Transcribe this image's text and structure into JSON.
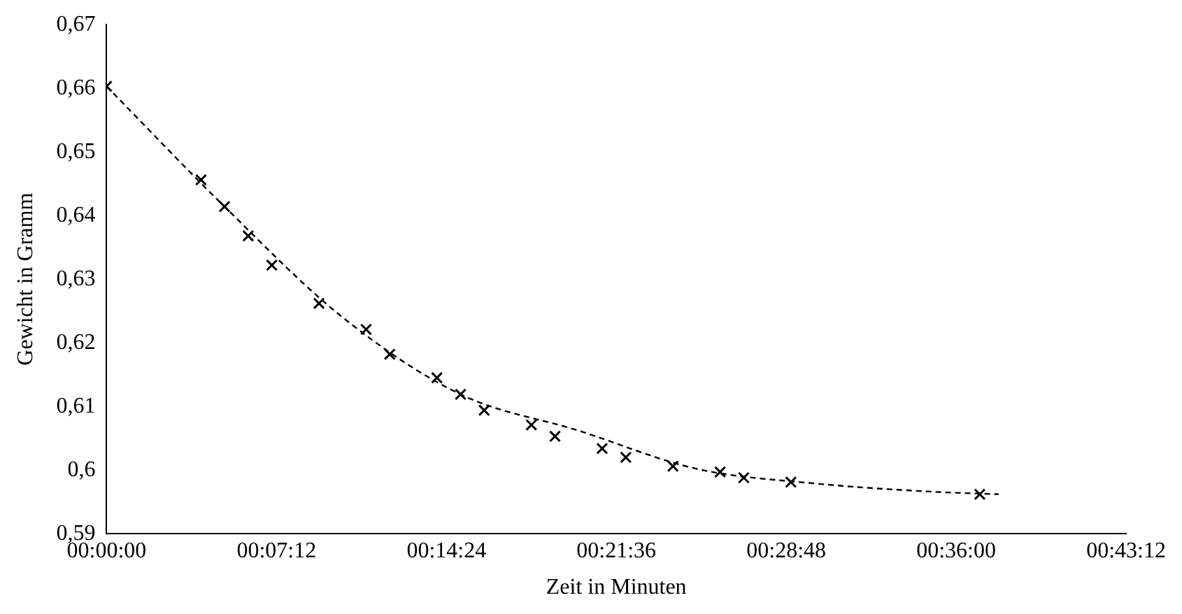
{
  "chart_data": {
    "type": "scatter",
    "xlabel": "Zeit in Minuten",
    "ylabel": "Gewicht in Gramm",
    "xlim": [
      0,
      0.72
    ],
    "xticks": [
      {
        "value": 0,
        "label": "00:00:00"
      },
      {
        "value": 0.12,
        "label": "00:07:12"
      },
      {
        "value": 0.24,
        "label": "00:14:24"
      },
      {
        "value": 0.36,
        "label": "00:21:36"
      },
      {
        "value": 0.48,
        "label": "00:28:48"
      },
      {
        "value": 0.6,
        "label": "00:36:00"
      },
      {
        "value": 0.72,
        "label": "00:43:12"
      }
    ],
    "ylim": [
      0.59,
      0.67
    ],
    "yticks": [
      {
        "value": 0.59,
        "label": "0,59"
      },
      {
        "value": 0.6,
        "label": "0,6"
      },
      {
        "value": 0.61,
        "label": "0,61"
      },
      {
        "value": 0.62,
        "label": "0,62"
      },
      {
        "value": 0.63,
        "label": "0,63"
      },
      {
        "value": 0.64,
        "label": "0,64"
      },
      {
        "value": 0.65,
        "label": "0,65"
      },
      {
        "value": 0.66,
        "label": "0,66"
      },
      {
        "value": 0.67,
        "label": "0,67"
      }
    ],
    "grid": false,
    "legend": false,
    "series": [
      {
        "type": "scatter",
        "color": "#000000",
        "marker": "cross",
        "x": [
          0,
          0.0667,
          0.0833,
          0.1,
          0.1167,
          0.15,
          0.1833,
          0.2,
          0.2333,
          0.25,
          0.2667,
          0.3,
          0.3167,
          0.35,
          0.3667,
          0.4,
          0.4333,
          0.45,
          0.4833,
          0.6167
        ],
        "values": [
          0.6603,
          0.6456,
          0.6414,
          0.6368,
          0.6322,
          0.6262,
          0.6221,
          0.6182,
          0.6145,
          0.6119,
          0.6094,
          0.6071,
          0.6053,
          0.6034,
          0.602,
          0.6006,
          0.5997,
          0.5988,
          0.5981,
          0.5962
        ]
      },
      {
        "type": "line",
        "color": "#000000",
        "marker": "none",
        "line_style": "dashed",
        "x": [
          0,
          0.0833,
          0.1667,
          0.25,
          0.3333,
          0.4167,
          0.5,
          0.5833,
          0.63
        ],
        "values": [
          0.6603,
          0.6414,
          0.624,
          0.6119,
          0.6062,
          0.6002,
          0.5979,
          0.5966,
          0.5962
        ]
      }
    ]
  }
}
